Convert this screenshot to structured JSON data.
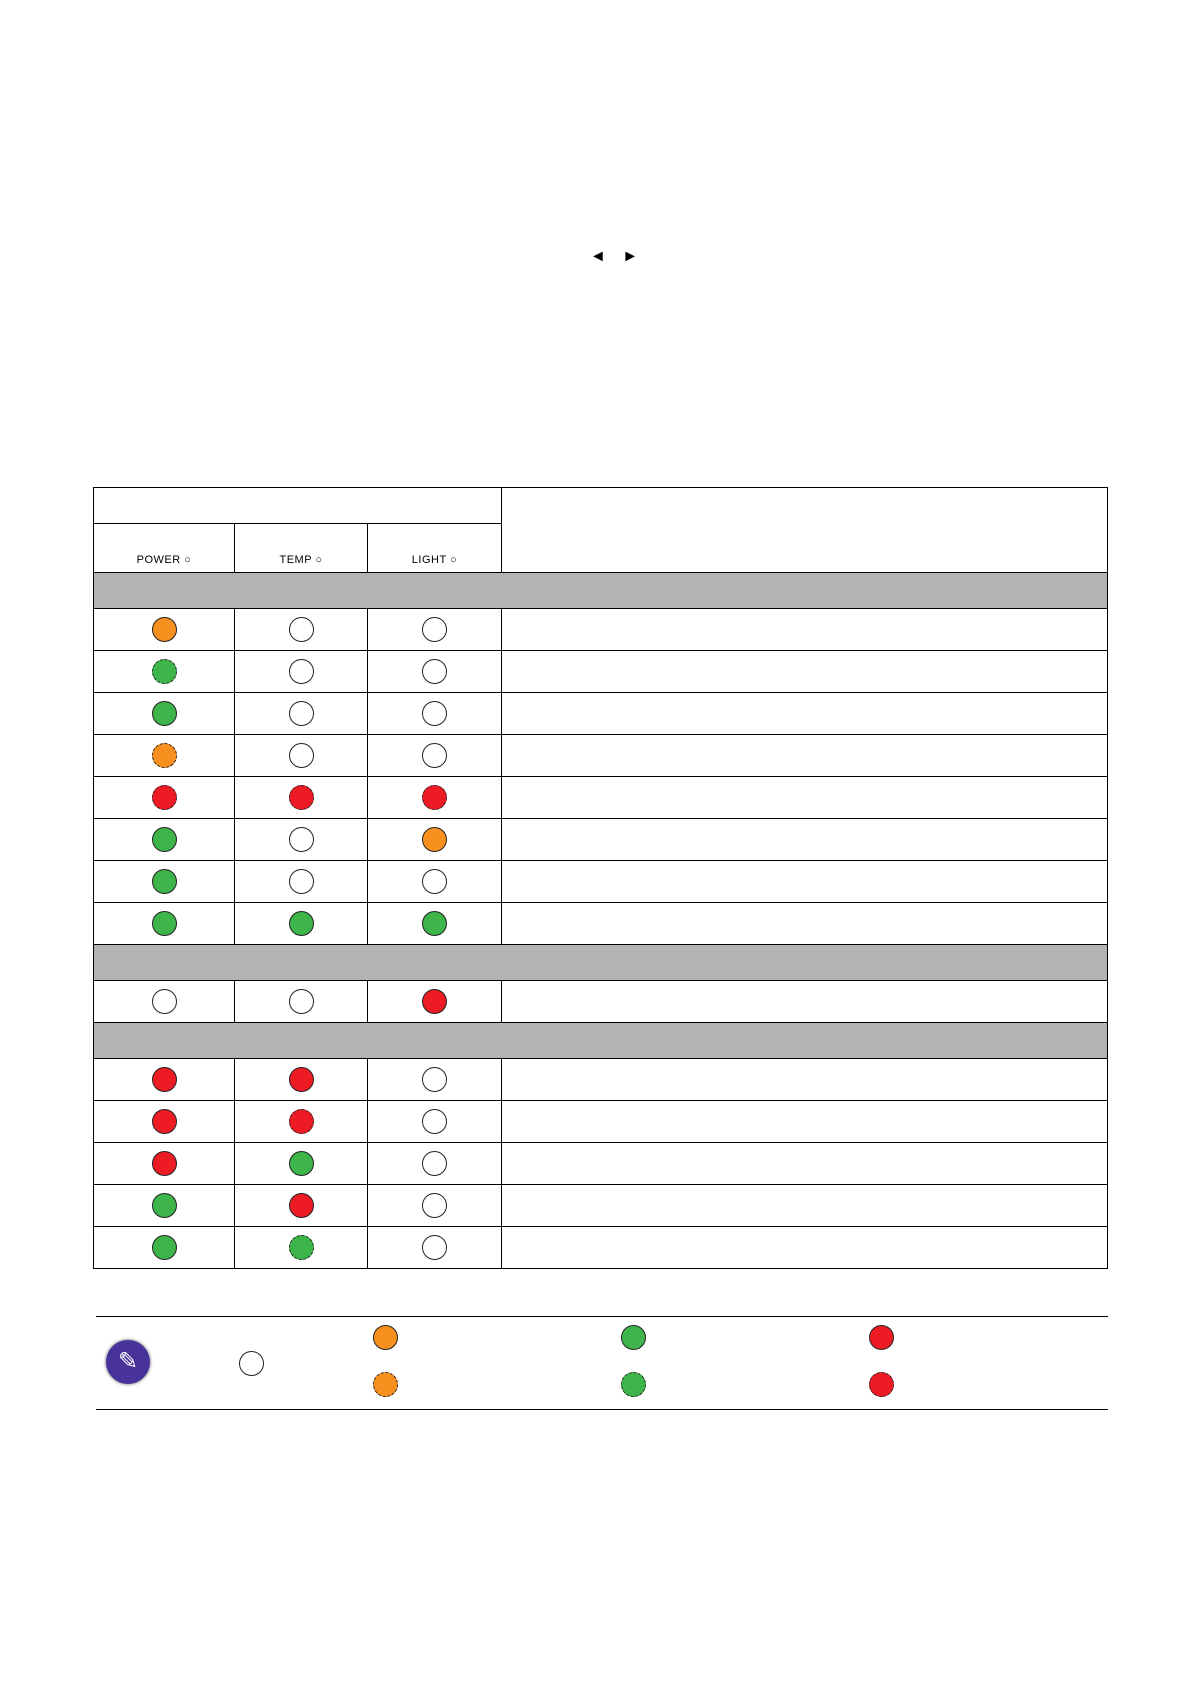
{
  "nav_arrows": "◄ ►",
  "table": {
    "columns": [
      "POWER ○",
      "TEMP ○",
      "LIGHT ○"
    ],
    "groups": [
      {
        "rows": [
          [
            "orange",
            "off",
            "off"
          ],
          [
            "green-flash",
            "off",
            "off"
          ],
          [
            "green",
            "off",
            "off"
          ],
          [
            "orange-flash",
            "off",
            "off"
          ],
          [
            "red-flash",
            "red-flash",
            "red-flash"
          ],
          [
            "green",
            "off",
            "orange"
          ],
          [
            "green",
            "off",
            "off"
          ],
          [
            "green",
            "green",
            "green"
          ]
        ]
      },
      {
        "rows": [
          [
            "off",
            "off",
            "red"
          ]
        ]
      },
      {
        "rows": [
          [
            "red",
            "red",
            "off"
          ],
          [
            "red",
            "red-flash",
            "off"
          ],
          [
            "red",
            "green",
            "off"
          ],
          [
            "green",
            "red",
            "off"
          ],
          [
            "green",
            "green-flash",
            "off"
          ]
        ]
      }
    ]
  },
  "legend": {
    "icon": "pencil-note-icon",
    "items": [
      "off",
      "orange",
      "orange-flash",
      "green",
      "green-flash",
      "red",
      "red-flash"
    ]
  },
  "colors": {
    "orange": "#f7901e",
    "green": "#3db54a",
    "red": "#ed1c24",
    "off": "#ffffff",
    "note_icon": "#48339a",
    "group_row": "#b3b3b3"
  }
}
